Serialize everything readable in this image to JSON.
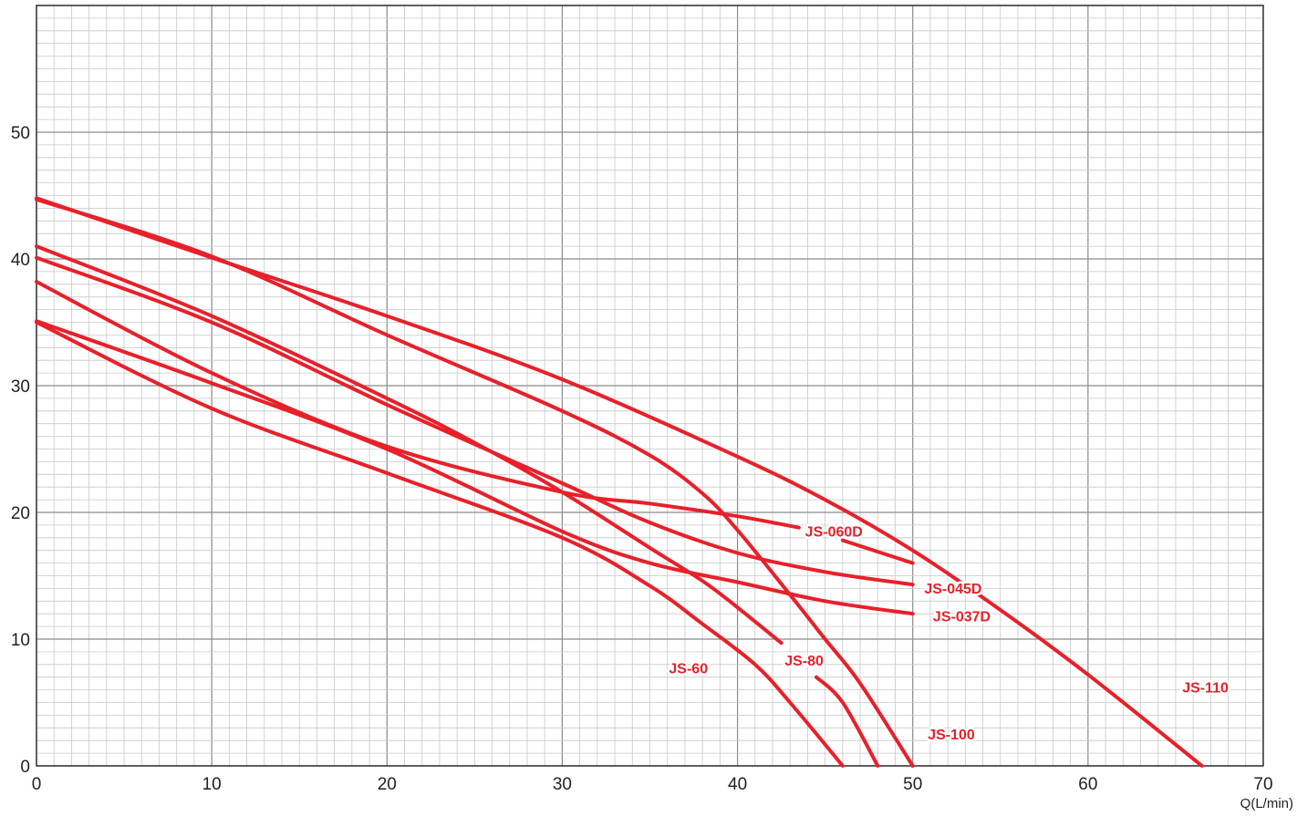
{
  "chart_data": {
    "type": "line",
    "title": "",
    "xlabel": "Q(L/min)",
    "ylabel": "",
    "xlim": [
      0,
      70
    ],
    "ylim": [
      0,
      50
    ],
    "x_ticks": [
      "0",
      "10",
      "20",
      "30",
      "40",
      "50",
      "60",
      "70"
    ],
    "y_ticks": [
      "0",
      "10",
      "20",
      "30",
      "40",
      "50"
    ],
    "grid": true,
    "line_color": "#e8202a",
    "grid_major_color": "#8a8a8a",
    "grid_minor_color": "#c8c8c8",
    "series": [
      {
        "name": "JS-110",
        "points": [
          [
            0,
            44.8
          ],
          [
            10,
            40.1
          ],
          [
            20,
            35.5
          ],
          [
            30,
            30.5
          ],
          [
            40,
            24.4
          ],
          [
            45,
            21
          ],
          [
            50,
            17
          ],
          [
            55,
            12.3
          ],
          [
            60,
            7.2
          ],
          [
            66.5,
            0
          ]
        ]
      },
      {
        "name": "JS-100",
        "points": [
          [
            0,
            44.7
          ],
          [
            10,
            40.2
          ],
          [
            20,
            34
          ],
          [
            30,
            28
          ],
          [
            35,
            24.5
          ],
          [
            38,
            21.5
          ],
          [
            40,
            18.6
          ],
          [
            43,
            13.5
          ],
          [
            45,
            10
          ],
          [
            47,
            6.5
          ],
          [
            50,
            0
          ]
        ]
      },
      {
        "name": "JS-80",
        "points": [
          [
            0,
            41
          ],
          [
            10,
            35.5
          ],
          [
            20,
            29
          ],
          [
            25,
            25.5
          ],
          [
            30,
            21.6
          ],
          [
            35,
            17.2
          ],
          [
            38,
            14.6
          ],
          [
            40,
            12.5
          ],
          [
            42.5,
            9.7
          ]
        ]
      },
      {
        "name": "JS-80",
        "points": [
          [
            44.5,
            7
          ],
          [
            46,
            5
          ],
          [
            48,
            0
          ]
        ]
      },
      {
        "name": "JS-060D",
        "points": [
          [
            0,
            38.2
          ],
          [
            10,
            31
          ],
          [
            20,
            25.2
          ],
          [
            30,
            21.6
          ],
          [
            35,
            20.7
          ],
          [
            40,
            19.7
          ],
          [
            43.5,
            18.8
          ]
        ]
      },
      {
        "name": "JS-060D",
        "points": [
          [
            46,
            17.8
          ],
          [
            50,
            16
          ]
        ]
      },
      {
        "name": "JS-045D",
        "points": [
          [
            0,
            40.1
          ],
          [
            10,
            35
          ],
          [
            20,
            28.5
          ],
          [
            30,
            22.3
          ],
          [
            35,
            19.2
          ],
          [
            40,
            16.8
          ],
          [
            45,
            15.3
          ],
          [
            50,
            14.3
          ]
        ]
      },
      {
        "name": "JS-037D",
        "points": [
          [
            0,
            35.1
          ],
          [
            10,
            30.2
          ],
          [
            20,
            25
          ],
          [
            30,
            18.5
          ],
          [
            35,
            16
          ],
          [
            40,
            14.5
          ],
          [
            45,
            13
          ],
          [
            50,
            12
          ]
        ]
      },
      {
        "name": "JS-60",
        "points": [
          [
            0,
            35
          ],
          [
            10,
            28.2
          ],
          [
            20,
            23.1
          ],
          [
            30,
            18
          ],
          [
            35,
            14.2
          ],
          [
            38,
            11.2
          ],
          [
            41,
            8
          ],
          [
            43,
            5
          ],
          [
            46,
            0
          ]
        ]
      }
    ],
    "annotations": [
      {
        "text": "JS-110",
        "x": 66.7,
        "y": 5.8
      },
      {
        "text": "JS-100",
        "x": 52.2,
        "y": 2.1
      },
      {
        "text": "JS-80",
        "x": 43.8,
        "y": 7.9
      },
      {
        "text": "JS-60",
        "x": 37.2,
        "y": 7.3
      },
      {
        "text": "JS-060D",
        "x": 45.5,
        "y": 18.1
      },
      {
        "text": "JS-045D",
        "x": 52.3,
        "y": 13.6
      },
      {
        "text": "JS-037D",
        "x": 52.8,
        "y": 11.4
      }
    ]
  }
}
